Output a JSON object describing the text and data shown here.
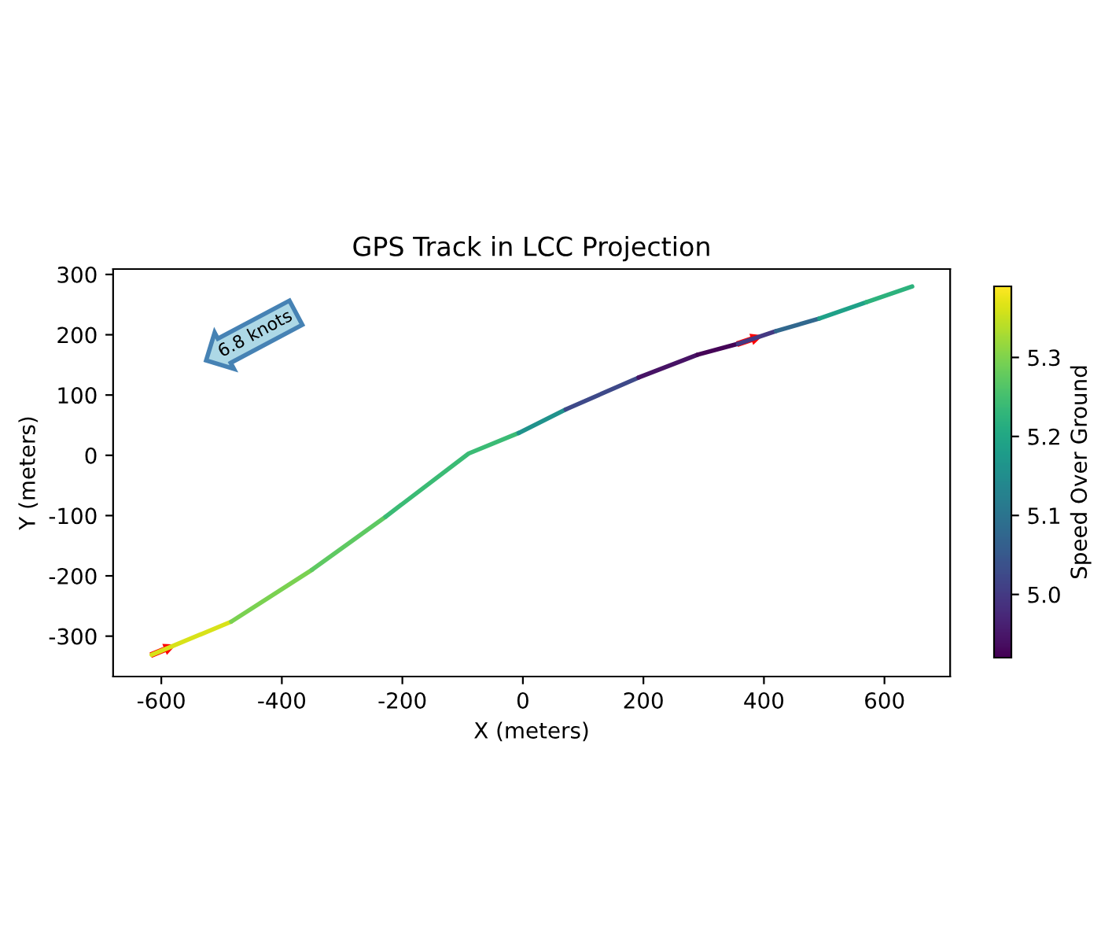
{
  "chart_data": {
    "type": "line",
    "title": "GPS Track in LCC Projection",
    "xlabel": "X (meters)",
    "ylabel": "Y (meters)",
    "clabel": "Speed Over Ground",
    "series": [
      {
        "x": [
          -616,
          -484
        ],
        "values": [
          -331,
          -276
        ],
        "color": "#d8e219"
      },
      {
        "x": [
          -484,
          -350
        ],
        "values": [
          -276,
          -190
        ],
        "color": "#7ad151"
      },
      {
        "x": [
          -350,
          -228
        ],
        "values": [
          -190,
          -102
        ],
        "color": "#5ec962"
      },
      {
        "x": [
          -228,
          -90,
          -7
        ],
        "values": [
          -102,
          3,
          37
        ],
        "color": "#3bbb75"
      },
      {
        "x": [
          -7,
          71
        ],
        "values": [
          37,
          76
        ],
        "color": "#20928c"
      },
      {
        "x": [
          71,
          192
        ],
        "values": [
          76,
          129
        ],
        "color": "#3e4989"
      },
      {
        "x": [
          192,
          290
        ],
        "values": [
          129,
          167
        ],
        "color": "#471365"
      },
      {
        "x": [
          290,
          357
        ],
        "values": [
          167,
          185
        ],
        "color": "#450457"
      },
      {
        "x": [
          357,
          420
        ],
        "values": [
          185,
          206
        ],
        "color": "#443983"
      },
      {
        "x": [
          420,
          492
        ],
        "values": [
          206,
          227
        ],
        "color": "#31688e"
      },
      {
        "x": [
          492,
          570
        ],
        "values": [
          227,
          254
        ],
        "color": "#1fa188"
      },
      {
        "x": [
          570,
          646
        ],
        "values": [
          254,
          280
        ],
        "color": "#2db27d"
      }
    ],
    "clim": [
      4.92,
      5.39
    ],
    "cticks": [
      {
        "value": 5,
        "label": "5.0"
      },
      5.1,
      5.2,
      5.3
    ],
    "xlim": [
      -680,
      709
    ],
    "ylim": [
      -367,
      309
    ],
    "xticks": [
      -600,
      -400,
      -200,
      0,
      200,
      400,
      600
    ],
    "yticks": [
      -300,
      -200,
      -100,
      0,
      100,
      200,
      300
    ],
    "annotations": [
      "6.8 knots"
    ],
    "grid": false,
    "legend": false
  }
}
